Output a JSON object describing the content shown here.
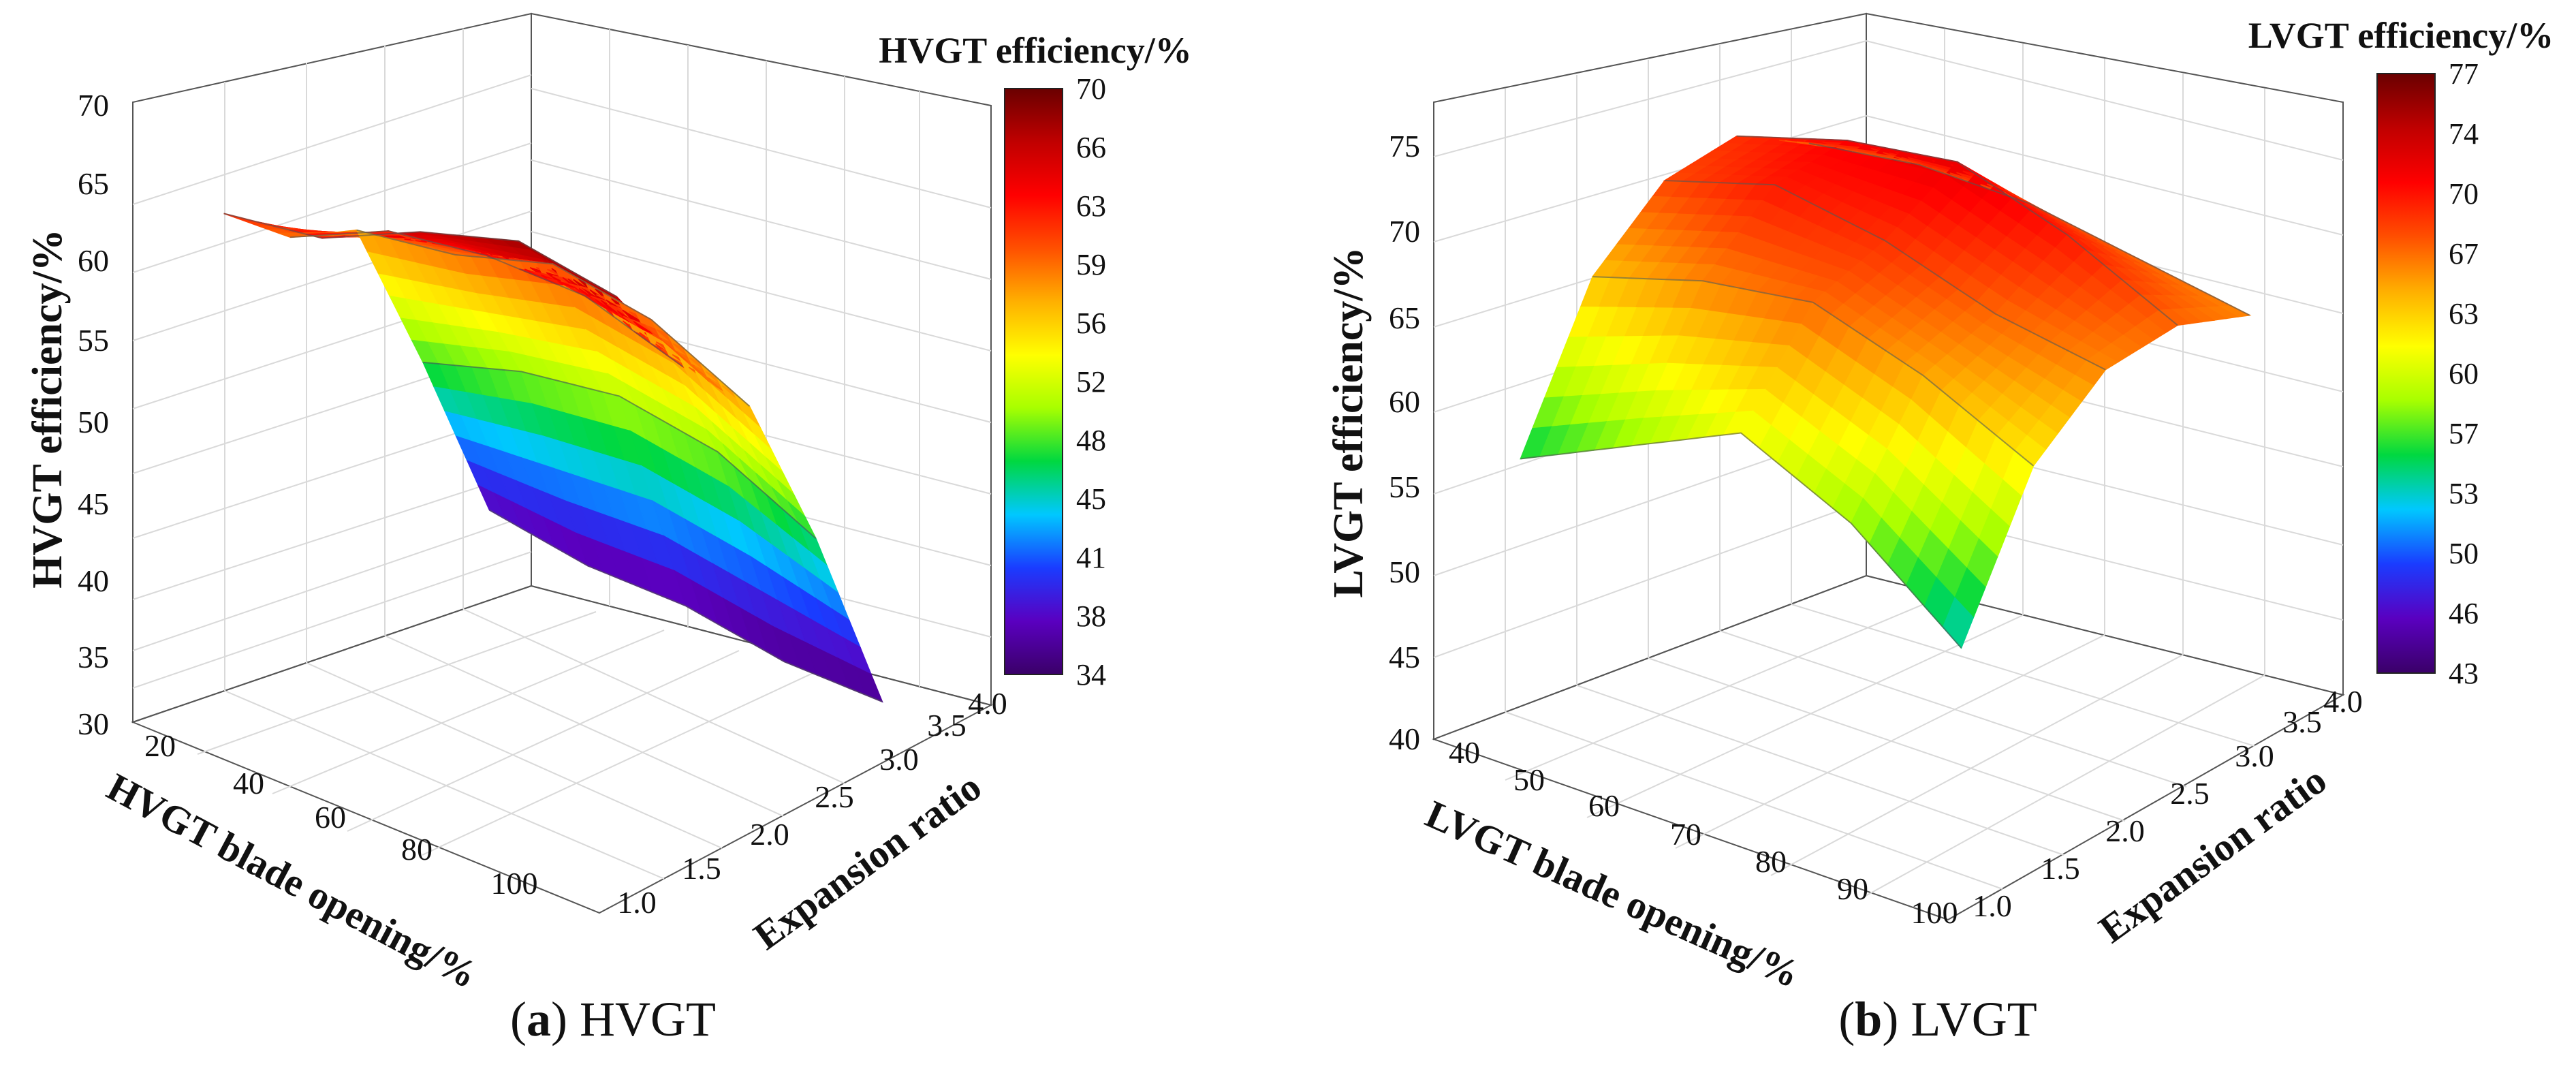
{
  "chart_data": [
    {
      "type": "surface3d",
      "panel_letter": "a",
      "caption_text": "HVGT",
      "zlabel": "HVGT efficiency/%",
      "xlabel": "HVGT blade opening/%",
      "ylabel": "Expansion ratio",
      "colorbar_title": "HVGT efficiency/%",
      "x_ticks": [
        "20",
        "40",
        "60",
        "80",
        "100"
      ],
      "y_ticks": [
        "1.0",
        "1.5",
        "2.0",
        "2.5",
        "3.0",
        "3.5",
        "4.0"
      ],
      "z_ticks": [
        "30",
        "35",
        "40",
        "45",
        "50",
        "55",
        "60",
        "65",
        "70"
      ],
      "colorbar_ticks": [
        "70",
        "66",
        "63",
        "59",
        "56",
        "52",
        "48",
        "45",
        "41",
        "38",
        "34"
      ],
      "xlim": [
        15,
        110
      ],
      "ylim": [
        1.0,
        4.0
      ],
      "zlim": [
        30,
        70
      ],
      "x": [
        20,
        40,
        60,
        80,
        100
      ],
      "y": [
        1.5,
        2.0,
        2.5,
        3.0,
        3.5
      ],
      "z": [
        [
          62,
          63,
          66,
          68,
          67
        ],
        [
          59,
          62,
          63,
          63,
          61
        ],
        [
          58,
          59,
          61,
          60,
          57
        ],
        [
          48,
          50,
          51,
          50,
          47
        ],
        [
          37,
          36,
          36,
          35,
          35
        ]
      ],
      "colors": [
        "#3a0068",
        "#5a00c0",
        "#1a3cff",
        "#00c8ff",
        "#00d840",
        "#a8ff00",
        "#ffff00",
        "#ffb000",
        "#ff5000",
        "#ff0000",
        "#c00000",
        "#6a0000"
      ]
    },
    {
      "type": "surface3d",
      "panel_letter": "b",
      "caption_text": "LVGT",
      "zlabel": "LVGT efficiency/%",
      "xlabel": "LVGT blade opening/%",
      "ylabel": "Expansion ratio",
      "colorbar_title": "LVGT efficiency/%",
      "x_ticks": [
        "40",
        "50",
        "60",
        "70",
        "80",
        "90",
        "100"
      ],
      "y_ticks": [
        "1.0",
        "1.5",
        "2.0",
        "2.5",
        "3.0",
        "3.5",
        "4.0"
      ],
      "z_ticks": [
        "40",
        "45",
        "50",
        "55",
        "60",
        "65",
        "70",
        "75"
      ],
      "colorbar_ticks": [
        "77",
        "74",
        "70",
        "67",
        "63",
        "60",
        "57",
        "53",
        "50",
        "46",
        "43"
      ],
      "xlim": [
        38,
        108
      ],
      "ylim": [
        1.0,
        4.0
      ],
      "zlim": [
        40,
        77
      ],
      "x": [
        40,
        55,
        70,
        85,
        100
      ],
      "y": [
        1.5,
        2.0,
        2.5,
        3.0,
        3.5
      ],
      "z": [
        [
          55,
          58,
          61,
          58,
          53
        ],
        [
          64,
          66,
          67,
          65,
          62
        ],
        [
          68,
          70,
          69,
          67,
          66
        ],
        [
          69,
          71,
          72,
          70,
          67
        ],
        [
          67,
          68,
          68,
          67,
          66
        ]
      ],
      "colors": [
        "#3a0068",
        "#5a00c0",
        "#1a3cff",
        "#00c8ff",
        "#00d840",
        "#a8ff00",
        "#ffff00",
        "#ffb000",
        "#ff5000",
        "#ff0000",
        "#c00000",
        "#6a0000"
      ]
    }
  ]
}
